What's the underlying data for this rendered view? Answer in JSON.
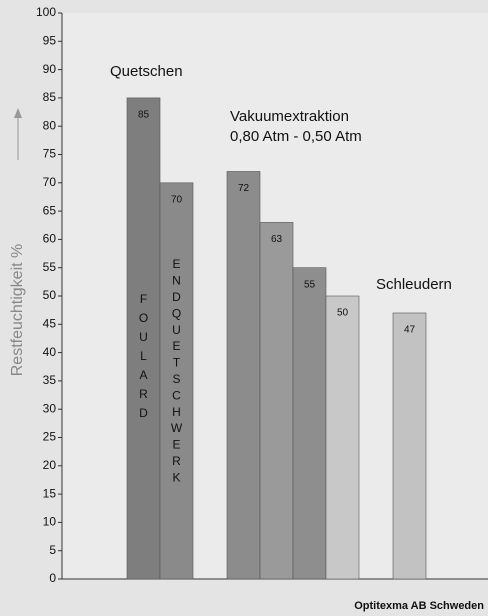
{
  "chart_data": {
    "type": "bar",
    "y_label": "Restfeuchtigkeit %",
    "categories": [
      "FOULARD",
      "ENDQUETSCHWERK",
      null,
      null,
      null,
      null,
      null
    ],
    "values": [
      85,
      70,
      72,
      63,
      55,
      50,
      47
    ],
    "colors": [
      "#7e7e7e",
      "#8a8a8a",
      "#8c8c8c",
      "#9a9a9a",
      "#8e8e8e",
      "#c8c8c8",
      "#c2c2c2"
    ],
    "ylim": [
      0,
      100
    ],
    "yticks": [
      0,
      5,
      10,
      15,
      20,
      25,
      30,
      35,
      40,
      45,
      50,
      55,
      60,
      65,
      70,
      75,
      80,
      85,
      90,
      95,
      100
    ],
    "annotations": [
      "Quetschen",
      "Vakuumextraktion",
      "0,80 Atm - 0,50 Atm",
      "Schleudern"
    ],
    "source": "Optitexma AB Schweden"
  }
}
